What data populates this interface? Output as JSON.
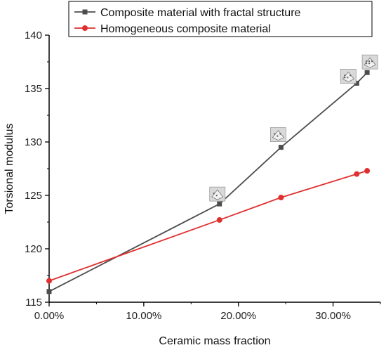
{
  "chart_data": {
    "type": "line",
    "title": "",
    "xlabel": "Ceramic mass fraction",
    "ylabel": "Torsional modulus",
    "xlim": [
      0,
      0.35
    ],
    "ylim": [
      115,
      140
    ],
    "x_ticks": [
      0,
      0.1,
      0.2,
      0.3
    ],
    "x_tick_labels": [
      "0.00%",
      "10.00%",
      "20.00%",
      "30.00%"
    ],
    "y_ticks": [
      115,
      120,
      125,
      130,
      135,
      140
    ],
    "y_tick_labels": [
      "115",
      "120",
      "125",
      "130",
      "135",
      "140"
    ],
    "grid": false,
    "legend_position": "top",
    "series": [
      {
        "name": "Composite material with fractal structure",
        "color": "#4d4d4d",
        "marker": "square",
        "x": [
          0.0,
          0.18,
          0.245,
          0.325,
          0.336
        ],
        "y": [
          116.0,
          124.2,
          129.5,
          135.5,
          136.5
        ]
      },
      {
        "name": "Homogeneous composite material",
        "color": "#e02f2f",
        "marker": "circle",
        "x": [
          0.0,
          0.18,
          0.245,
          0.325,
          0.336
        ],
        "y": [
          117.0,
          122.7,
          124.8,
          127.0,
          127.3
        ]
      }
    ],
    "structure_icons": [
      {
        "name": "fractal-structure-level-1-icon",
        "x": 0.18,
        "y": 124.2
      },
      {
        "name": "fractal-structure-level-2-icon",
        "x": 0.245,
        "y": 129.5
      },
      {
        "name": "fractal-structure-level-3-icon",
        "x": 0.325,
        "y": 135.5
      },
      {
        "name": "fractal-structure-level-4-icon",
        "x": 0.336,
        "y": 136.5
      }
    ]
  }
}
